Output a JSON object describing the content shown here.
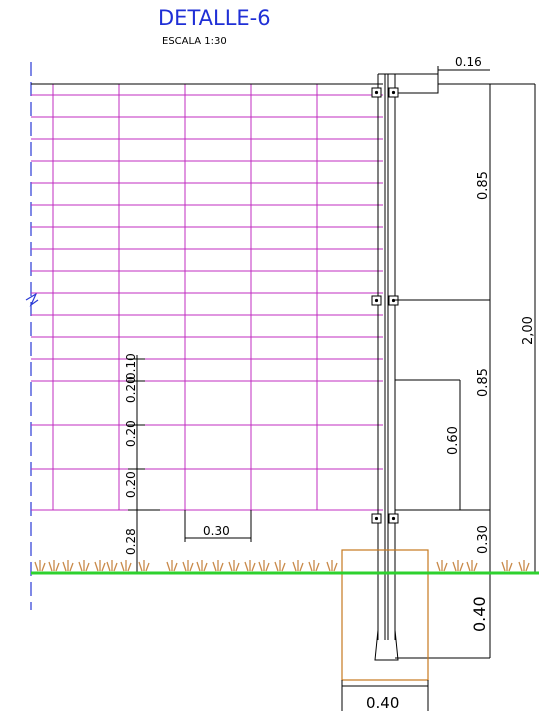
{
  "title": "DETALLE-6",
  "scale": "ESCALA 1:30",
  "colors": {
    "mesh": "#c02cc0",
    "ground": "#2ed12e",
    "footing": "#c6781e",
    "axis": "#2a3ad6",
    "grass": "#c98a4a",
    "line": "#000000"
  },
  "dimensions": {
    "cap_width": "0.16",
    "total_height": "2,00",
    "upper_span": "0.85",
    "lower_span": "0.85",
    "brace_height": "0.60",
    "bottom_gap": "0.30",
    "footing_depth": "0.40",
    "footing_width": "0.40",
    "mesh_spacing_1": "0.10",
    "mesh_spacing_2": "0.20",
    "mesh_spacing_3": "0.20",
    "mesh_spacing_4": "0.20",
    "clearance": "0.28",
    "mesh_width": "0.30"
  }
}
